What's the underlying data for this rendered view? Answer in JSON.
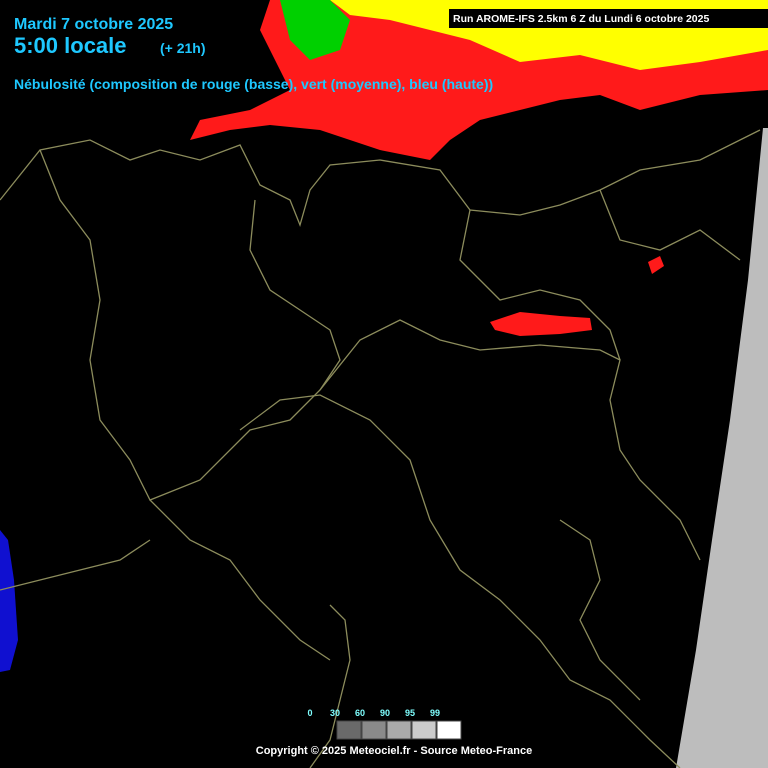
{
  "header": {
    "date": "Mardi 7 octobre 2025",
    "time": "5:00 locale",
    "offset": "(+ 21h)",
    "description": "Nébulosité (composition de rouge (basse), vert (moyenne), bleu (haute))"
  },
  "run_info": "Run AROME-IFS 2.5km 6 Z du Lundi 6 octobre 2025",
  "legend": {
    "labels": [
      0,
      30,
      60,
      90,
      95,
      99
    ]
  },
  "copyright": "Copyright © 2025 Meteociel.fr - Source Meteo-France"
}
